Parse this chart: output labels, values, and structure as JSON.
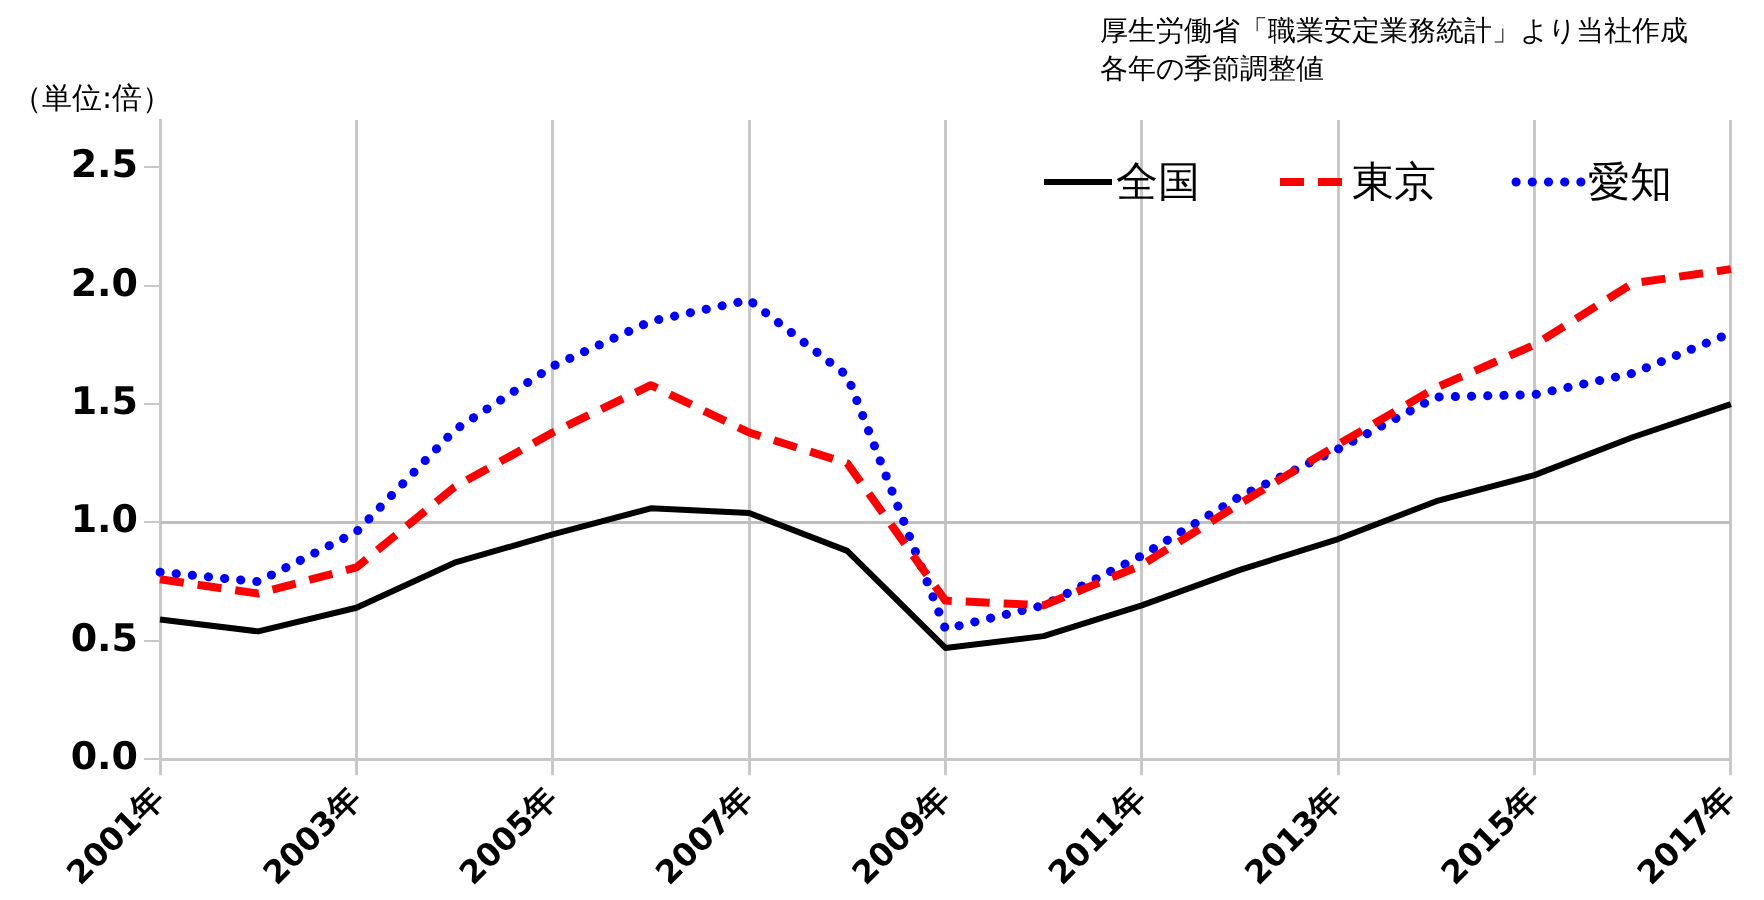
{
  "chart_data": {
    "type": "line",
    "ylabel": "（単位:倍）",
    "annotations": [
      "厚生労働省「職業安定業務統計」より当社作成",
      "各年の季節調整値"
    ],
    "categories": [
      "2001年",
      null,
      "2003年",
      null,
      "2005年",
      null,
      "2007年",
      null,
      "2009年",
      null,
      "2011年",
      null,
      "2013年",
      null,
      "2015年",
      null,
      "2017年"
    ],
    "series": [
      {
        "name": "全国",
        "color": "#000000",
        "line_style": "solid",
        "values": [
          0.59,
          0.54,
          0.64,
          0.83,
          0.95,
          1.06,
          1.04,
          0.88,
          0.47,
          0.52,
          0.65,
          0.8,
          0.93,
          1.09,
          1.2,
          1.36,
          1.5
        ]
      },
      {
        "name": "東京",
        "color": "#ff0000",
        "line_style": "dashed",
        "values": [
          0.76,
          0.7,
          0.81,
          1.15,
          1.38,
          1.58,
          1.38,
          1.25,
          0.67,
          0.65,
          0.82,
          1.08,
          1.33,
          1.57,
          1.75,
          2.01,
          2.07
        ]
      },
      {
        "name": "愛知",
        "color": "#0000ff",
        "line_style": "dotted",
        "values": [
          0.79,
          0.75,
          0.96,
          1.39,
          1.66,
          1.85,
          1.94,
          1.62,
          0.55,
          0.65,
          0.86,
          1.11,
          1.31,
          1.53,
          1.54,
          1.63,
          1.8
        ]
      }
    ],
    "ylim": [
      0,
      2.7
    ],
    "yticks": [
      {
        "value": 0,
        "label": "0.0"
      },
      0.5,
      {
        "value": 1,
        "label": "1.0"
      },
      1.5,
      {
        "value": 2,
        "label": "2.0"
      },
      2.5
    ],
    "ref_lines": [
      {
        "axis": "y",
        "value": 1,
        "color": "#bfbfbf"
      }
    ],
    "grid": "x",
    "legend": "top right",
    "marker": "none"
  }
}
